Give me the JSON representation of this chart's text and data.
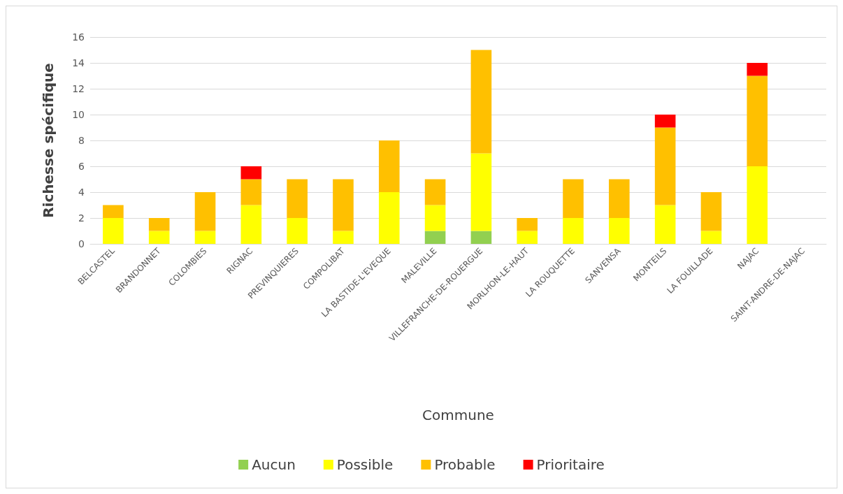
{
  "chart_data": {
    "type": "bar",
    "stacked": true,
    "xlabel": "Commune",
    "ylabel": "Richesse spécifique",
    "categories": [
      "BELCASTEL",
      "BRANDONNET",
      "COLOMBIES",
      "RIGNAC",
      "PREVINQUIERES",
      "COMPOLIBAT",
      "LA BASTIDE-L'EVEQUE",
      "MALEVILLE",
      "VILLEFRANCHE-DE-ROUERGUE",
      "MORLHON-LE-HAUT",
      "LA ROUQUETTE",
      "SANVENSA",
      "MONTEILS",
      "LA FOUILLADE",
      "NAJAC",
      "SAINT-ANDRE-DE-NAJAC"
    ],
    "series": [
      {
        "name": "Aucun",
        "color": "#92d050",
        "values": [
          0,
          0,
          0,
          0,
          0,
          0,
          0,
          1,
          1,
          0,
          0,
          0,
          0,
          0,
          0,
          0
        ]
      },
      {
        "name": "Possible",
        "color": "#ffff00",
        "values": [
          2,
          1,
          1,
          3,
          2,
          1,
          4,
          2,
          6,
          1,
          2,
          2,
          3,
          1,
          6,
          0
        ]
      },
      {
        "name": "Probable",
        "color": "#ffc000",
        "values": [
          1,
          1,
          3,
          2,
          3,
          4,
          4,
          2,
          8,
          1,
          3,
          3,
          6,
          3,
          7,
          0
        ]
      },
      {
        "name": "Prioritaire",
        "color": "#ff0000",
        "values": [
          0,
          0,
          0,
          1,
          0,
          0,
          0,
          0,
          0,
          0,
          0,
          0,
          1,
          0,
          1,
          0
        ]
      }
    ],
    "ylim": [
      0,
      16
    ],
    "yticks": [
      0,
      2,
      4,
      6,
      8,
      10,
      12,
      14,
      16
    ],
    "grid": "y",
    "legend": "bottom"
  }
}
